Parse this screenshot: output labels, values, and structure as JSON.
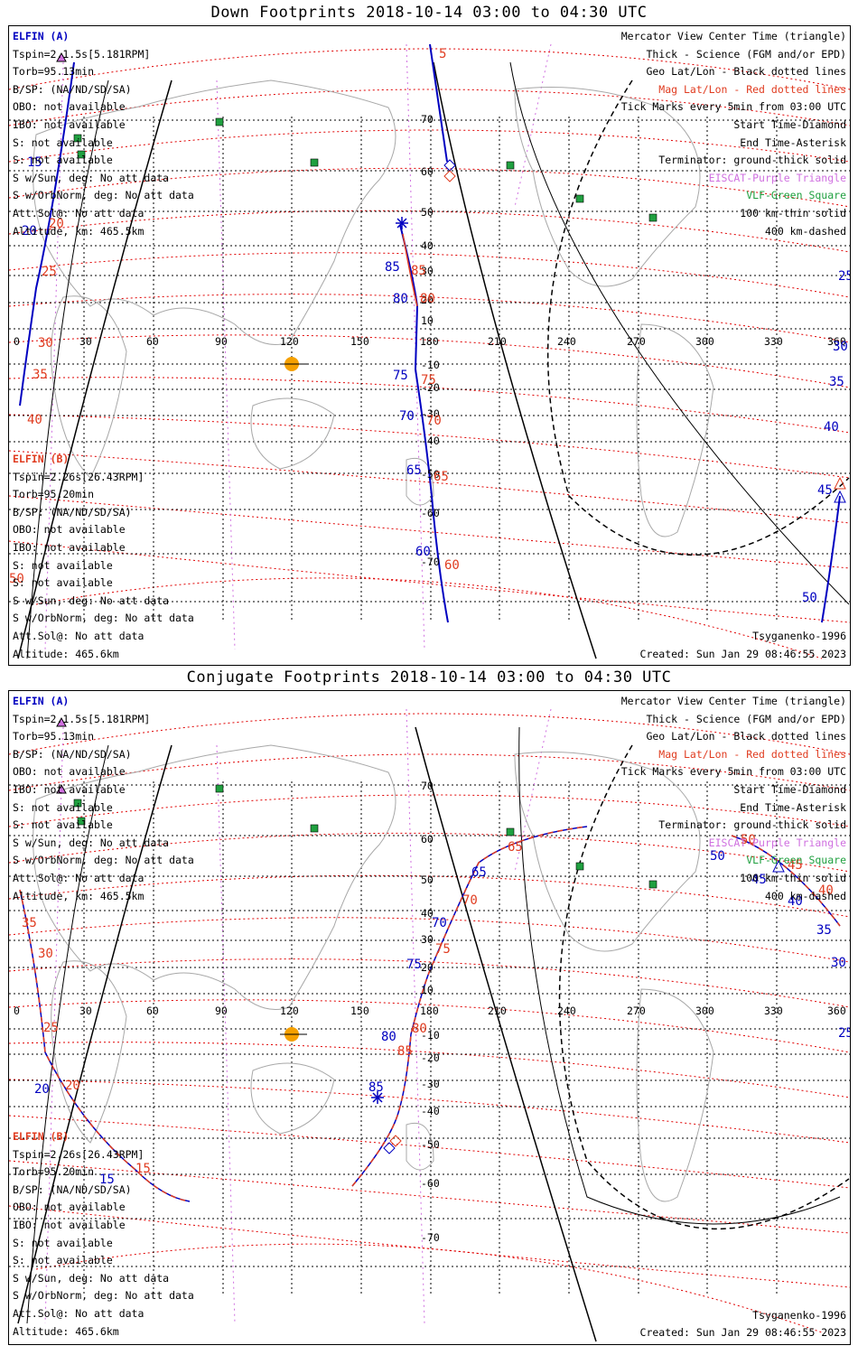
{
  "panels": [
    {
      "title": "Down Footprints 2018-10-14 03:00 to 04:30 UTC",
      "elfin_a": {
        "name": "ELFIN (A)",
        "lines": [
          "Tspin=2.1.5s[5.181RPM]",
          "Torb=95.13min",
          "B/SP: (NA/ND/SD/SA)",
          "OBO: not available",
          "IBO: not available",
          "S: not available",
          "S: not available",
          "S w/Sun, deg: No att data",
          "S w/OrbNorm, deg: No att data",
          "Att.Sol@: No att data",
          "Altitude, km: 465.5km"
        ]
      },
      "elfin_b": {
        "name": "ELFIN (B)",
        "lines": [
          "Tspin=2.26s[26.43RPM]",
          "Torb=95.20min",
          "B/SP: (NA/ND/SD/SA)",
          "OBO: not available",
          "IBO: not available",
          "S: not available",
          "S: not available",
          "S w/Sun, deg: No att data",
          "S w/OrbNorm, deg: No att data",
          "Att.Sol@: No att data",
          "Altitude: 465.6km"
        ]
      },
      "legend": [
        "Mercator View Center Time (triangle)",
        "Thick - Science (FGM and/or EPD)",
        "Geo Lat/Lon - Black dotted lines",
        "Mag Lat/Lon - Red dotted lines",
        "Tick Marks every 5min from 03:00 UTC",
        "Start Time-Diamond",
        "End Time-Asterisk",
        "Terminator: ground-thick solid",
        "EISCAT-Purple Triangle",
        "VLF-Green Square",
        "100 km-thin solid",
        "400 km-dashed"
      ],
      "model": "Tsyganenko-1996",
      "created": "Created: Sun Jan 29 08:46:55 2023",
      "a_tick_labels": [
        "15",
        "20",
        "25",
        "30",
        "35",
        "40",
        "45",
        "50",
        "60",
        "65",
        "70",
        "75",
        "80",
        "85"
      ],
      "b_tick_labels": [
        "5",
        "20",
        "25",
        "30",
        "35",
        "40",
        "45",
        "50",
        "60",
        "65",
        "70",
        "75",
        "80",
        "85"
      ]
    },
    {
      "title": "Conjugate Footprints 2018-10-14 03:00 to 04:30 UTC",
      "elfin_a": {
        "name": "ELFIN (A)",
        "lines": [
          "Tspin=2.1.5s[5.181RPM]",
          "Torb=95.13min",
          "B/SP: (NA/ND/SD/SA)",
          "OBO: not available",
          "IBO: not available",
          "S: not available",
          "S: not available",
          "S w/Sun, deg: No att data",
          "S w/OrbNorm, deg: No att data",
          "Att.Sol@: No att data",
          "Altitude, km: 465.5km"
        ]
      },
      "elfin_b": {
        "name": "ELFIN (B)",
        "lines": [
          "Tspin=2.26s[26.43RPM]",
          "Torb=95.20min",
          "B/SP: (NA/ND/SD/SA)",
          "OBO: not available",
          "IBO: not available",
          "S: not available",
          "S: not available",
          "S w/Sun, deg: No att data",
          "S w/OrbNorm, deg: No att data",
          "Att.Sol@: No att data",
          "Altitude: 465.6km"
        ]
      },
      "legend": [
        "Mercator View Center Time (triangle)",
        "Thick - Science (FGM and/or EPD)",
        "Geo Lat/Lon - Black dotted lines",
        "Mag Lat/Lon - Red dotted lines",
        "Tick Marks every 5min from 03:00 UTC",
        "Start Time-Diamond",
        "End Time-Asterisk",
        "Terminator: ground-thick solid",
        "EISCAT-Purple Triangle",
        "VLF-Green Square",
        "100 km-thin solid",
        "400 km-dashed"
      ],
      "model": "Tsyganenko-1996",
      "created": "Created: Sun Jan 29 08:46:55 2023",
      "a_tick_labels": [
        "15",
        "20",
        "25",
        "30",
        "35",
        "40",
        "45",
        "50",
        "65",
        "70",
        "75",
        "80",
        "85"
      ],
      "b_tick_labels": [
        "15",
        "20",
        "25",
        "30",
        "35",
        "40",
        "45",
        "50",
        "65",
        "70",
        "75",
        "80",
        "85"
      ]
    }
  ],
  "lon_labels": [
    "0",
    "30",
    "60",
    "90",
    "120",
    "150",
    "180",
    "210",
    "240",
    "270",
    "300",
    "330",
    "360"
  ],
  "lat_labels": [
    "70",
    "60",
    "50",
    "40",
    "30",
    "20",
    "10",
    "-10",
    "-20",
    "-30",
    "-40",
    "-50",
    "-60",
    "-70"
  ],
  "colors": {
    "elfin_a": "#0000c0",
    "elfin_b": "#e03c20",
    "geo_grid": "#000000",
    "mag_grid": "#e00000",
    "coast": "#a0a0a0",
    "sun": "#f5a000",
    "eiscat": "#d070e0",
    "vlf": "#20a040"
  },
  "icons": {
    "sun": "sun-marker-icon",
    "start": "diamond-icon",
    "end": "asterisk-icon",
    "center": "triangle-icon",
    "vlf": "square-icon"
  }
}
